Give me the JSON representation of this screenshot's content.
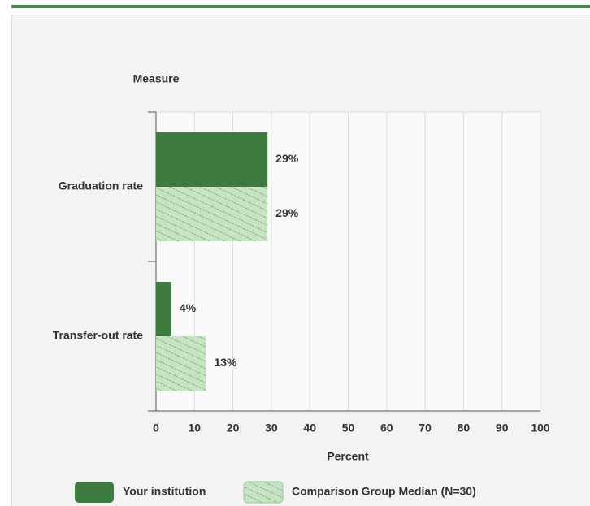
{
  "chart_data": {
    "type": "hbar",
    "ylabel": "Measure",
    "xlabel": "Percent",
    "categories": [
      "Graduation rate",
      "Transfer-out rate"
    ],
    "series": [
      {
        "name": "Your institution",
        "color": "#3e7b3e",
        "hatch": false,
        "values": [
          29,
          4
        ],
        "value_labels": [
          "29%",
          "4%"
        ]
      },
      {
        "name": "Comparison Group Median (N=30)",
        "color": "#c6e4c4",
        "hatch": true,
        "values": [
          29,
          13
        ],
        "value_labels": [
          "29%",
          "13%"
        ]
      }
    ],
    "xlim": [
      0,
      100
    ],
    "xticks": [
      0,
      10,
      20,
      30,
      40,
      50,
      60,
      70,
      80,
      90,
      100
    ],
    "grid": true
  }
}
